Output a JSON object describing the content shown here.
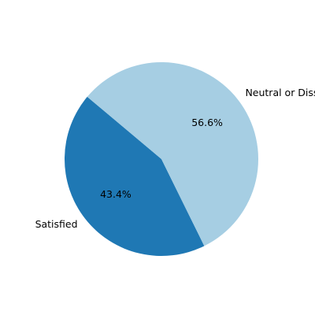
{
  "chart_data": {
    "type": "pie",
    "title": "",
    "slices": [
      {
        "label": "Satisfied",
        "value": 43.4,
        "pct_label": "43.4%",
        "color": "#1f78b4"
      },
      {
        "label": "Neutral or Dissatisfied",
        "value": 56.6,
        "pct_label": "56.6%",
        "color": "#a6cee3"
      }
    ],
    "start_angle_deg": 140,
    "direction": "counterclockwise"
  }
}
